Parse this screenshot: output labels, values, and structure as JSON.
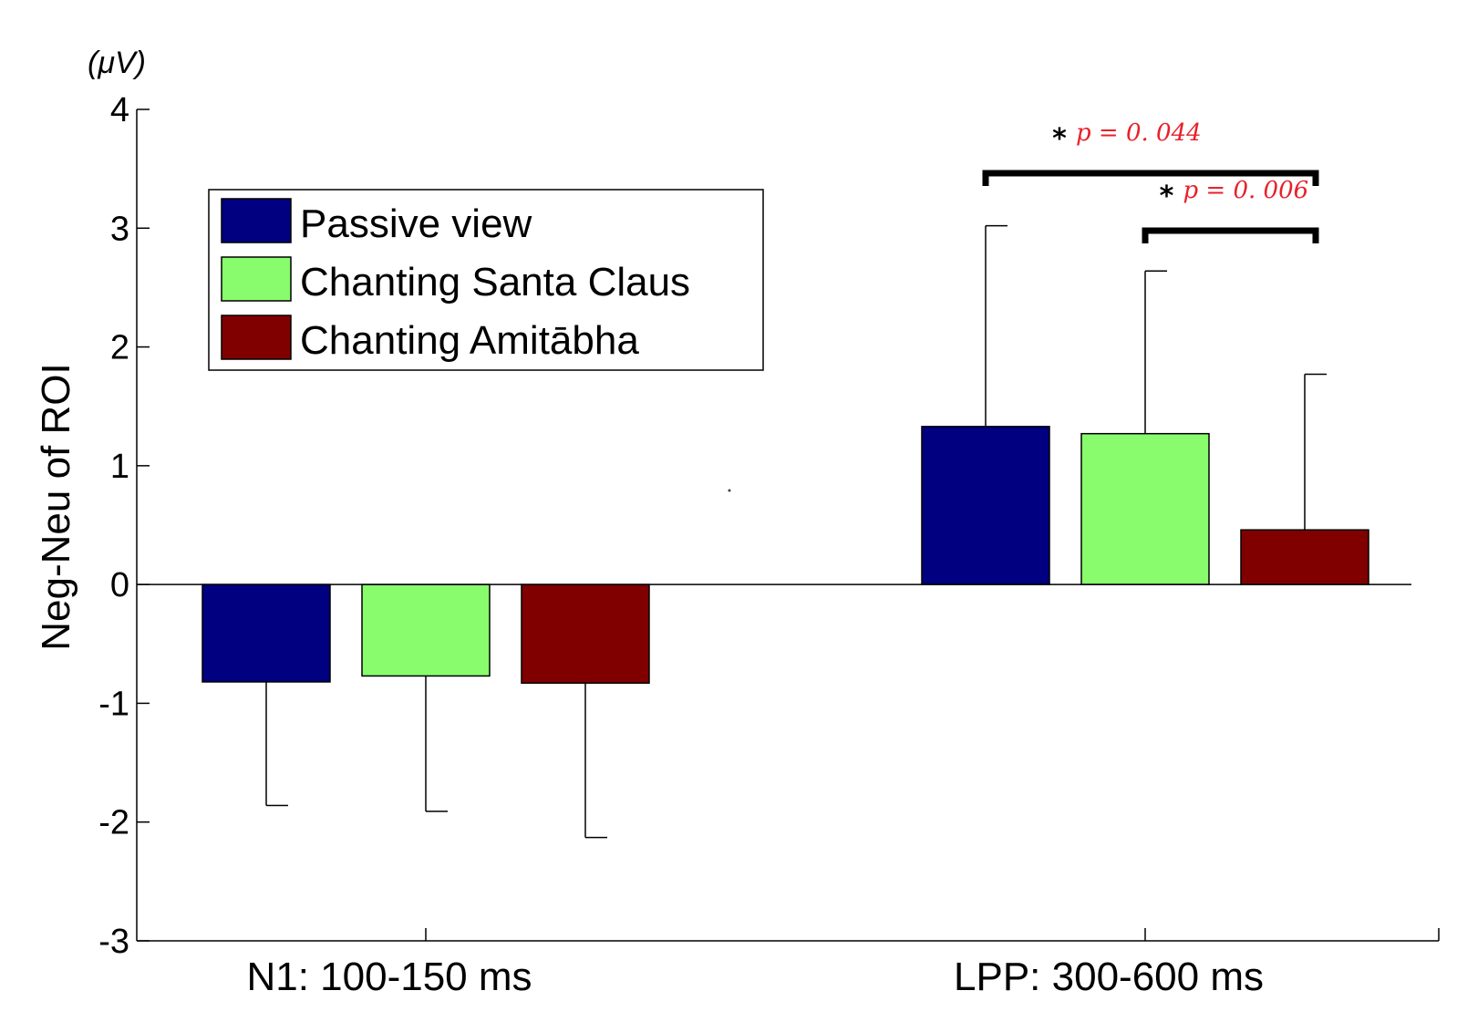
{
  "chart_data": {
    "type": "bar",
    "title": "",
    "unit_label": "(μV)",
    "ylabel": "Neg-Neu of ROI",
    "xlabel": "",
    "ylim": [
      -3,
      4
    ],
    "yticks": [
      -3,
      -2,
      -1,
      0,
      1,
      2,
      3,
      4
    ],
    "categories": [
      "N1: 100-150 ms",
      "LPP: 300-600 ms"
    ],
    "legend_position": "top-left",
    "series": [
      {
        "name": "Passive view",
        "color": "#000080",
        "values": [
          -0.82,
          1.33
        ],
        "error_ends": [
          -1.86,
          3.02
        ]
      },
      {
        "name": "Chanting Santa Claus",
        "color": "#88fc6c",
        "values": [
          -0.77,
          1.27
        ],
        "error_ends": [
          -1.91,
          2.64
        ]
      },
      {
        "name": "Chanting Amitābha",
        "color": "#800000",
        "values": [
          -0.83,
          0.46
        ],
        "error_ends": [
          -2.13,
          1.77
        ]
      }
    ],
    "annotations": [
      {
        "category": 1,
        "from_series": 0,
        "to_series": 2,
        "star": "*",
        "label": "p = 0. 044"
      },
      {
        "category": 1,
        "from_series": 1,
        "to_series": 2,
        "star": "*",
        "label": "p = 0. 006"
      }
    ]
  }
}
